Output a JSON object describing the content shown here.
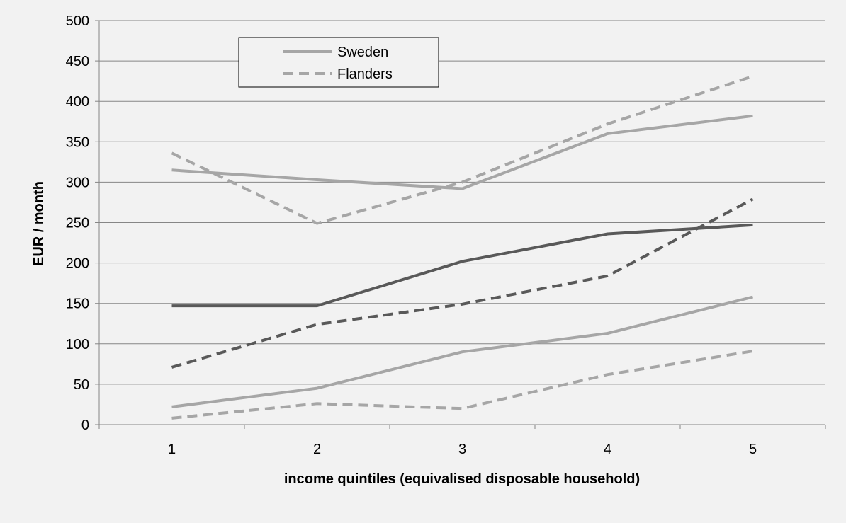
{
  "chart_data": {
    "type": "line",
    "title": "",
    "xlabel": "income quintiles (equivalised disposable  household)",
    "ylabel": "EUR / month",
    "categories": [
      "1",
      "2",
      "3",
      "4",
      "5"
    ],
    "ylim": [
      0,
      500
    ],
    "yticks": [
      0,
      50,
      100,
      150,
      200,
      250,
      300,
      350,
      400,
      450,
      500
    ],
    "grid": true,
    "legend": {
      "placement": "top-left",
      "entries": [
        "Sweden",
        "Flanders"
      ]
    },
    "series": [
      {
        "name": "Sweden",
        "color": "#a6a6a6",
        "dash": "solid",
        "values": [
          315,
          303,
          292,
          360,
          382
        ]
      },
      {
        "name": "Flanders",
        "color": "#a6a6a6",
        "dash": "dashed",
        "values": [
          336,
          249,
          300,
          372,
          431
        ]
      },
      {
        "color": "#595959",
        "dash": "solid",
        "values": [
          147,
          147,
          202,
          236,
          247
        ]
      },
      {
        "color": "#595959",
        "dash": "dashed",
        "values": [
          71,
          124,
          149,
          184,
          279
        ]
      },
      {
        "color": "#a6a6a6",
        "dash": "solid",
        "values": [
          22,
          45,
          90,
          113,
          158
        ]
      },
      {
        "color": "#a6a6a6",
        "dash": "dashed",
        "values": [
          8,
          26,
          20,
          62,
          91
        ]
      }
    ]
  }
}
